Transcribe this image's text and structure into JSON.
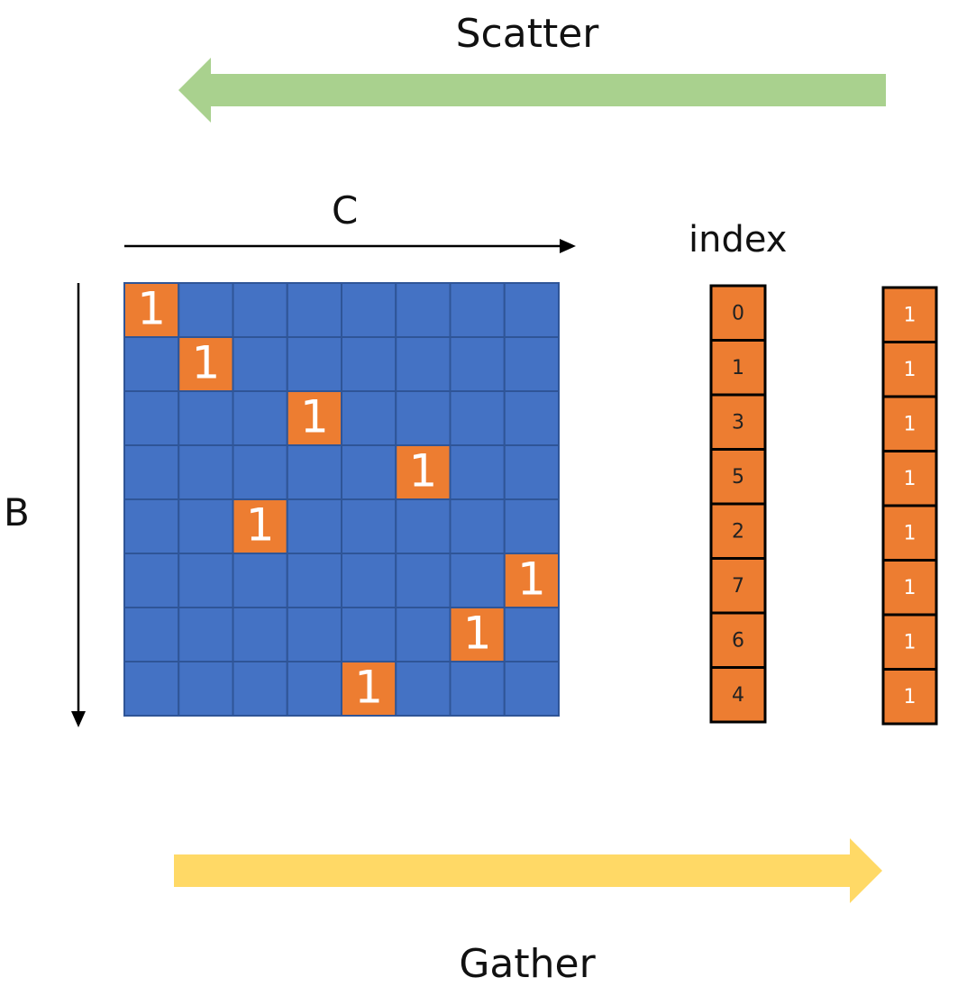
{
  "labels": {
    "scatter": "Scatter",
    "gather": "Gather",
    "c_axis": "C",
    "b_axis": "B",
    "index": "index"
  },
  "colors": {
    "matrix_blue": "#4472c4",
    "cell_orange": "#ed7d31",
    "scatter_arrow": "#a9d18e",
    "gather_arrow": "#ffd966",
    "axis_arrow": "#000000"
  },
  "matrix": {
    "rows": 8,
    "cols": 8,
    "ones_col_per_row": [
      0,
      1,
      3,
      5,
      2,
      7,
      6,
      4
    ],
    "one_value": "1"
  },
  "index_column": [
    "0",
    "1",
    "3",
    "5",
    "2",
    "7",
    "6",
    "4"
  ],
  "values_column": [
    "1",
    "1",
    "1",
    "1",
    "1",
    "1",
    "1",
    "1"
  ]
}
